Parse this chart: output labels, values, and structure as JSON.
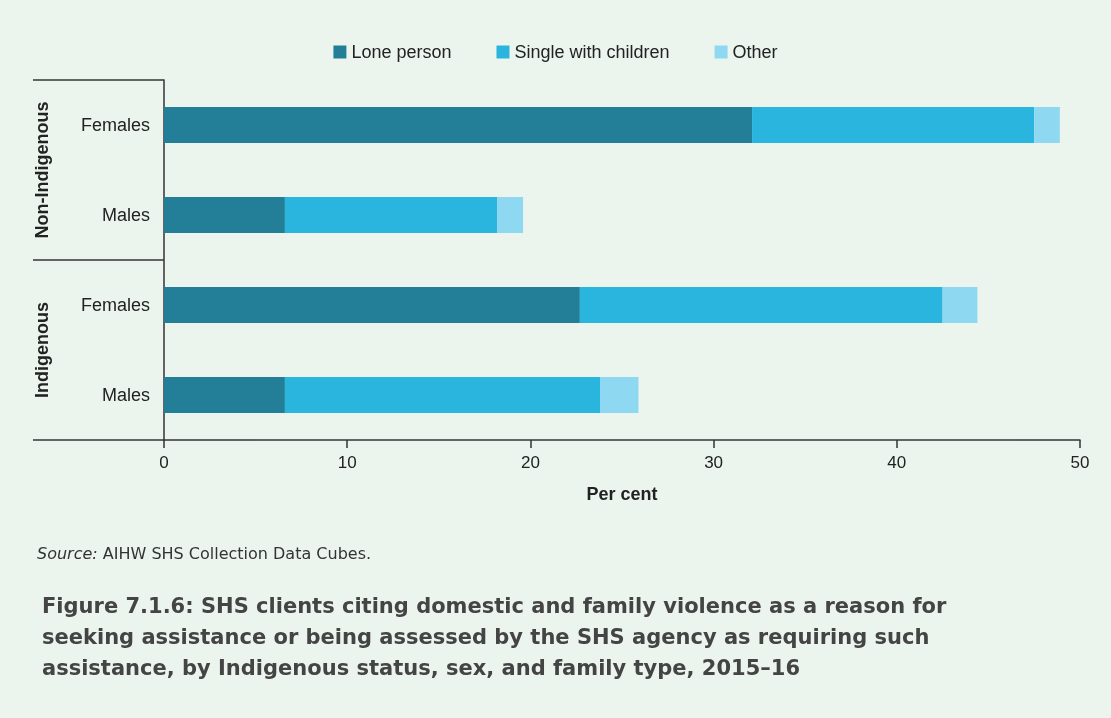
{
  "chart_data": {
    "type": "bar",
    "orientation": "horizontal",
    "stacked": true,
    "title": "Figure 7.1.6: SHS clients citing domestic and family violence as a reason for seeking assistance or being assessed by the SHS agency as requiring such assistance, by Indigenous status, sex, and family type, 2015–16",
    "categories": [
      "Females",
      "Males",
      "Females",
      "Males"
    ],
    "series": [
      {
        "name": "Lone person",
        "color": "#237f98",
        "values": [
          32.1,
          6.6,
          22.7,
          6.6
        ]
      },
      {
        "name": "Single with children",
        "color": "#29b5de",
        "values": [
          15.4,
          11.6,
          19.8,
          17.2
        ]
      },
      {
        "name": "Other",
        "color": "#8fd8f2",
        "values": [
          1.4,
          1.4,
          1.9,
          2.1
        ]
      }
    ],
    "xlabel": "Per cent",
    "xlim": [
      0,
      50
    ],
    "xticks": [
      0,
      10,
      20,
      30,
      40,
      50
    ],
    "grid": false,
    "legend": "top",
    "annotations": [
      "Non-Indigenous",
      "Indigenous",
      "Source: AIHW SHS Collection Data Cubes."
    ]
  }
}
